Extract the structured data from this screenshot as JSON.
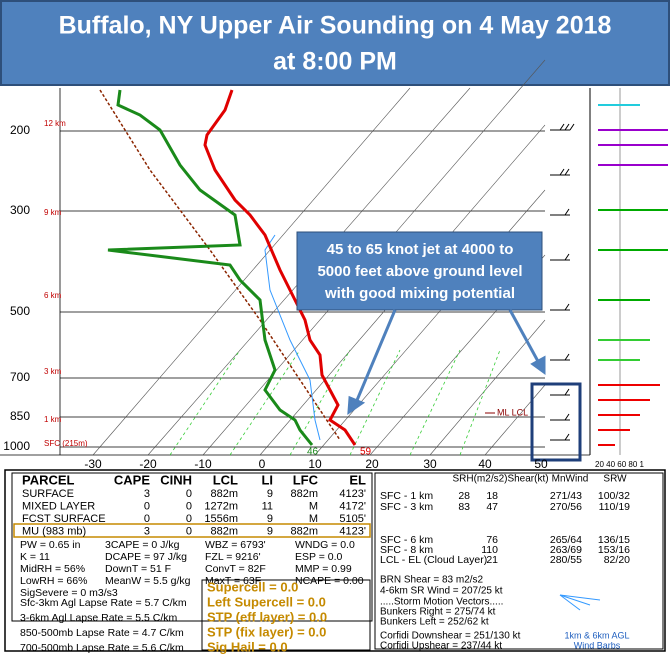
{
  "header": {
    "title": [
      "Buffalo, NY Upper Air Sounding on 4 May 2018",
      "at 8:00 PM"
    ]
  },
  "callout": [
    "45 to 65 knot jet at 4000 to",
    "5000 feet above ground level",
    "with good mixing potential"
  ],
  "plot": {
    "pressure_labels": [
      "200",
      "300",
      "500",
      "700",
      "850",
      "1000"
    ],
    "height_labels": [
      "12 km",
      "9 km",
      "6 km",
      "3 km",
      "1 km",
      "SFC (215m)"
    ],
    "temperature_labels": [
      "-30",
      "-20",
      "-10",
      "0",
      "10",
      "20",
      "30",
      "40",
      "50"
    ],
    "surface_values": [
      "46",
      "59"
    ],
    "lcl_label": "ML LCL",
    "hodograph_axis": "20 40 60 80 1"
  },
  "parcel_table": {
    "header": [
      "PARCEL",
      "CAPE",
      "CINH",
      "LCL",
      "LI",
      "LFC",
      "EL"
    ],
    "rows": [
      [
        "SURFACE",
        "3",
        "0",
        "882m",
        "9",
        "882m",
        "4123'"
      ],
      [
        "MIXED LAYER",
        "0",
        "0",
        "1272m",
        "11",
        "M",
        "4172'"
      ],
      [
        "FCST SURFACE",
        "0",
        "0",
        "1556m",
        "9",
        "M",
        "5105'"
      ],
      [
        "MU (983 mb)",
        "3",
        "0",
        "882m",
        "9",
        "882m",
        "4123'"
      ]
    ]
  },
  "parameters": [
    [
      "PW = 0.65 in",
      "K = 11",
      "MidRH = 56%",
      "LowRH = 66%",
      "SigSevere = 0 m3/s3"
    ],
    [
      "3CAPE = 0 J/kg",
      "DCAPE = 97 J/kg",
      "DownT = 51 F",
      "MeanW = 5.5 g/kg"
    ],
    [
      "WBZ = 6793'",
      "FZL = 9216'",
      "ConvT = 82F",
      "MaxT = 63F"
    ],
    [
      "WNDG = 0.0",
      "ESP = 0.0",
      "MMP = 0.99",
      "NCAPE = 0.00"
    ]
  ],
  "lapse_rates": [
    "Sfc-3km Agl Lapse Rate = 5.7 C/km",
    "3-6km Agl Lapse Rate = 5.5 C/km",
    "850-500mb Lapse Rate = 4.7 C/km",
    "700-500mb Lapse Rate = 5.6 C/km"
  ],
  "indices": [
    "Supercell = 0.0",
    "Left Supercell = 0.0",
    "STP (eff layer) = 0.0",
    "STP (fix layer) = 0.0",
    "Sig Hail = 0.0"
  ],
  "kinematics": {
    "header": [
      "SRH(m2/s2)",
      "Shear(kt)",
      "MnWind",
      "SRW"
    ],
    "rows": [
      [
        "SFC - 1 km",
        "28",
        "18",
        "271/43",
        "100/32"
      ],
      [
        "SFC - 3 km",
        "83",
        "47",
        "270/56",
        "110/19"
      ],
      [
        "SFC - 6 km",
        null,
        "76",
        "265/64",
        "136/15"
      ],
      [
        "SFC - 8 km",
        null,
        "110",
        "263/69",
        "153/16"
      ],
      [
        "LCL - EL (Cloud Layer)",
        null,
        "21",
        "280/55",
        "82/20"
      ]
    ],
    "notes": [
      "BRN Shear = 83 m2/s2",
      "4-6km SR Wind = 207/25 kt",
      ".....Storm Motion Vectors.....",
      "Bunkers Right = 275/74 kt",
      "Bunkers Left = 252/62 kt",
      "Corfidi Downshear = 251/130 kt",
      "Corfidi Upshear = 237/44 kt"
    ],
    "barb_note": [
      "1km & 6km AGL",
      "Wind Barbs"
    ]
  }
}
